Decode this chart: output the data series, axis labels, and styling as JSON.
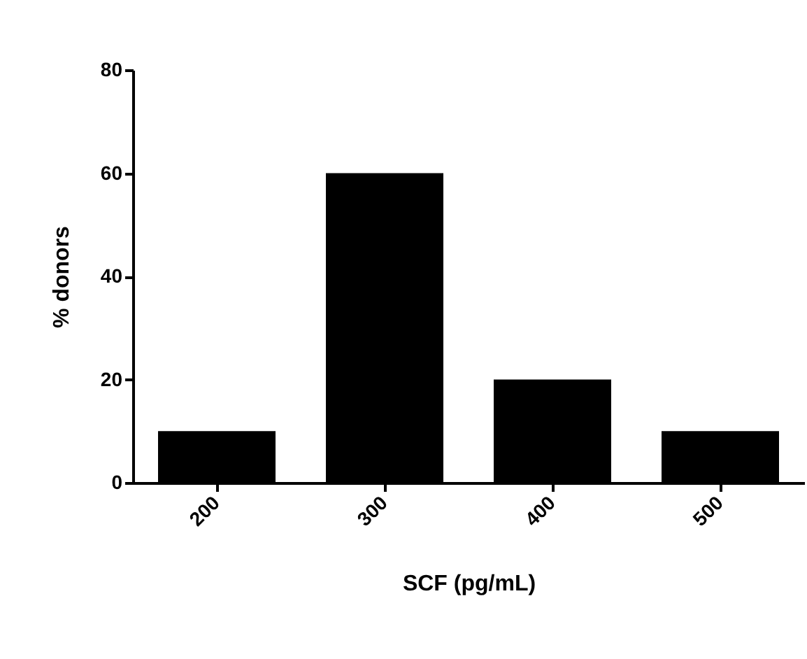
{
  "chart_data": {
    "type": "bar",
    "xlabel": "SCF (pg/mL)",
    "ylabel": "% donors",
    "categories": [
      "200",
      "300",
      "400",
      "500"
    ],
    "values": [
      10,
      60,
      20,
      10
    ],
    "color": "#000000",
    "ylim": [
      0,
      80
    ],
    "yticks": [
      0,
      20,
      40,
      60,
      80
    ],
    "grid": false
  }
}
